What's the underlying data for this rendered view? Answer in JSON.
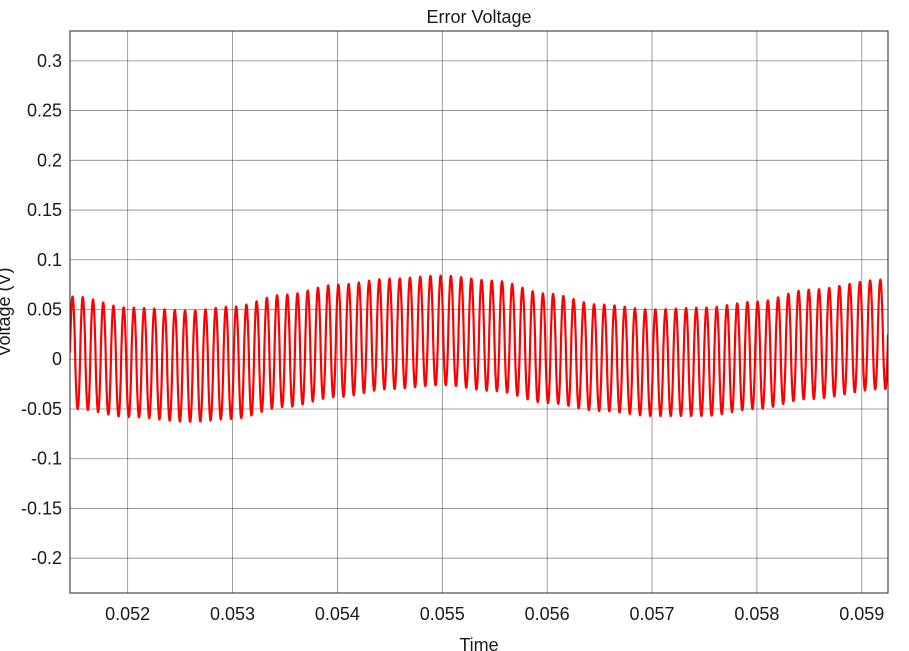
{
  "chart_data": {
    "type": "line",
    "title": "Error Voltage",
    "xlabel": "Time",
    "ylabel": "Voltage (V)",
    "xlim": [
      0.05145,
      0.05925
    ],
    "ylim": [
      -0.235,
      0.33
    ],
    "grid": true,
    "x_ticks": [
      0.052,
      0.053,
      0.054,
      0.055,
      0.056,
      0.057,
      0.058,
      0.059
    ],
    "x_tick_labels": [
      "0.052",
      "0.053",
      "0.054",
      "0.055",
      "0.056",
      "0.057",
      "0.058",
      "0.059"
    ],
    "y_ticks": [
      0.3,
      0.25,
      0.2,
      0.15,
      0.1,
      0.05,
      0,
      -0.05,
      -0.1,
      -0.15,
      -0.2
    ],
    "y_tick_labels": [
      "0.3",
      "0.25",
      "0.2",
      "0.15",
      "0.1",
      "0.05",
      "0",
      "-0.05",
      "-0.1",
      "-0.15",
      "-0.2"
    ],
    "series": [
      {
        "color": "#ff0000",
        "oscillation_cycles": 80,
        "envelope_points": [
          {
            "x": 0.0515,
            "max": 0.063,
            "min": -0.05
          },
          {
            "x": 0.052,
            "max": 0.052,
            "min": -0.058
          },
          {
            "x": 0.0526,
            "max": 0.049,
            "min": -0.063
          },
          {
            "x": 0.053,
            "max": 0.053,
            "min": -0.06
          },
          {
            "x": 0.0535,
            "max": 0.065,
            "min": -0.048
          },
          {
            "x": 0.054,
            "max": 0.075,
            "min": -0.038
          },
          {
            "x": 0.0545,
            "max": 0.081,
            "min": -0.03
          },
          {
            "x": 0.055,
            "max": 0.084,
            "min": -0.026
          },
          {
            "x": 0.0555,
            "max": 0.079,
            "min": -0.032
          },
          {
            "x": 0.056,
            "max": 0.066,
            "min": -0.044
          },
          {
            "x": 0.0565,
            "max": 0.055,
            "min": -0.052
          },
          {
            "x": 0.057,
            "max": 0.05,
            "min": -0.057
          },
          {
            "x": 0.0575,
            "max": 0.052,
            "min": -0.057
          },
          {
            "x": 0.058,
            "max": 0.058,
            "min": -0.05
          },
          {
            "x": 0.0585,
            "max": 0.07,
            "min": -0.04
          },
          {
            "x": 0.0592,
            "max": 0.08,
            "min": -0.03
          }
        ]
      }
    ]
  }
}
